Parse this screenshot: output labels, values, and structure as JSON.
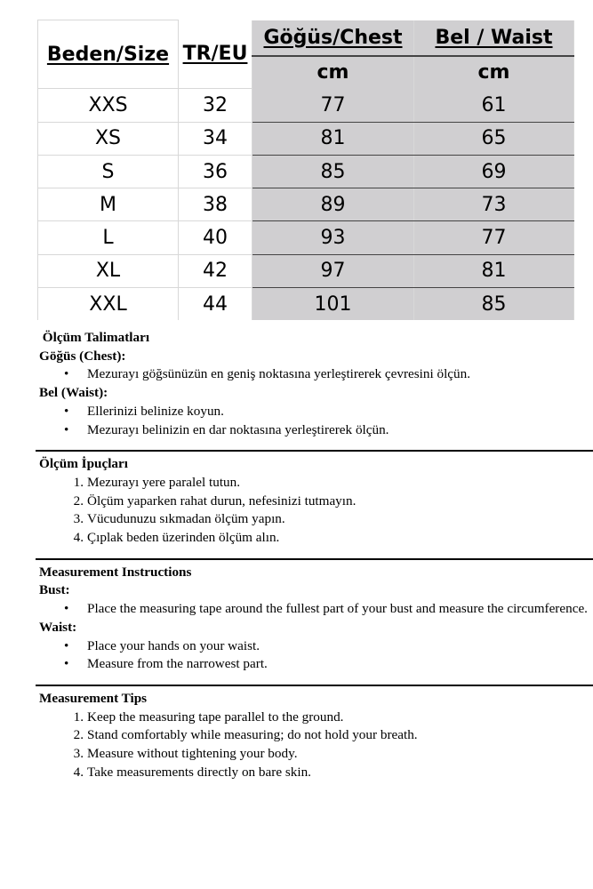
{
  "table": {
    "headers": [
      "Beden/Size",
      "TR/EU",
      "Göğüs/Chest",
      "Bel / Waist"
    ],
    "units": [
      "cm",
      "cm"
    ],
    "rows": [
      [
        "XXS",
        "32",
        "77",
        "61"
      ],
      [
        "XS",
        "34",
        "81",
        "65"
      ],
      [
        "S",
        "36",
        "85",
        "69"
      ],
      [
        "M",
        "38",
        "89",
        "73"
      ],
      [
        "L",
        "40",
        "93",
        "77"
      ],
      [
        "XL",
        "42",
        "97",
        "81"
      ],
      [
        "XXL",
        "44",
        "101",
        "85"
      ]
    ]
  },
  "sections": [
    {
      "title": " Ölçüm Talimatları",
      "groups": [
        {
          "label": "Göğüs (Chest):",
          "items": [
            "Mezurayı göğsünüzün en geniş noktasına yerleştirerek çevresini ölçün."
          ]
        },
        {
          "label": "Bel (Waist):",
          "items": [
            "Ellerinizi belinize koyun.",
            "Mezurayı belinizin en dar noktasına yerleştirerek ölçün."
          ]
        }
      ]
    },
    {
      "title": "Ölçüm İpuçları",
      "list": [
        "Mezurayı yere paralel tutun.",
        "Ölçüm yaparken rahat durun, nefesinizi tutmayın.",
        "Vücudunuzu sıkmadan ölçüm yapın.",
        "Çıplak beden üzerinden ölçüm alın."
      ]
    },
    {
      "title": "Measurement Instructions",
      "groups": [
        {
          "label": "Bust:",
          "items": [
            "Place the measuring tape around the fullest part of your bust and measure the circumference."
          ]
        },
        {
          "label": "Waist:",
          "items": [
            "Place your hands on your waist.",
            "Measure from the narrowest part."
          ]
        }
      ]
    },
    {
      "title": "Measurement Tips",
      "list": [
        "Keep the measuring tape parallel to the ground.",
        "Stand comfortably while measuring; do not hold your breath.",
        "Measure without tightening your body.",
        "Take measurements directly on bare skin."
      ]
    }
  ]
}
